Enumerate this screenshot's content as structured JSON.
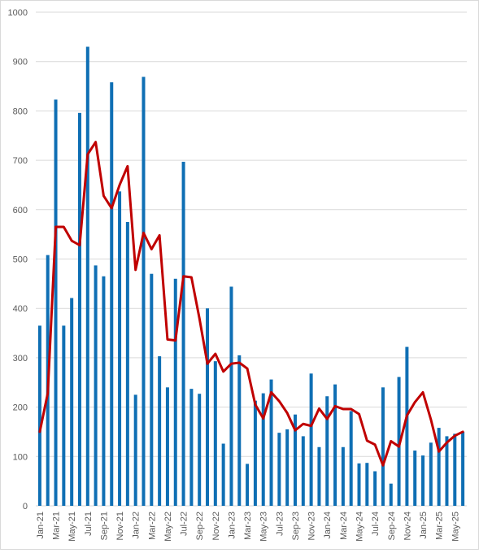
{
  "chart_data": {
    "type": "bar",
    "title": "",
    "xlabel": "",
    "ylabel": "",
    "ylim": [
      0,
      1000
    ],
    "yticks": [
      0,
      100,
      200,
      300,
      400,
      500,
      600,
      700,
      800,
      900,
      1000
    ],
    "grid": true,
    "legend": "none",
    "x_tick_labels_shown": [
      "Jan-21",
      "Mar-21",
      "May-21",
      "Jul-21",
      "Sep-21",
      "Nov-21",
      "Jan-22",
      "Mar-22",
      "May-22",
      "Jul-22",
      "Sep-22",
      "Nov-22",
      "Jan-23",
      "Mar-23",
      "May-23",
      "Jul-23",
      "Sep-23",
      "Nov-23",
      "Jan-24",
      "Mar-24",
      "May-24",
      "Jul-24",
      "Sep-24",
      "Nov-24",
      "Jan-25",
      "Mar-25",
      "May-25"
    ],
    "categories": [
      "Jan-21",
      "Feb-21",
      "Mar-21",
      "Apr-21",
      "May-21",
      "Jun-21",
      "Jul-21",
      "Aug-21",
      "Sep-21",
      "Oct-21",
      "Nov-21",
      "Dec-21",
      "Jan-22",
      "Feb-22",
      "Mar-22",
      "Apr-22",
      "May-22",
      "Jun-22",
      "Jul-22",
      "Aug-22",
      "Sep-22",
      "Oct-22",
      "Nov-22",
      "Dec-22",
      "Jan-23",
      "Feb-23",
      "Mar-23",
      "Apr-23",
      "May-23",
      "Jun-23",
      "Jul-23",
      "Aug-23",
      "Sep-23",
      "Oct-23",
      "Nov-23",
      "Dec-23",
      "Jan-24",
      "Feb-24",
      "Mar-24",
      "Apr-24",
      "May-24",
      "Jun-24",
      "Jul-24",
      "Aug-24",
      "Sep-24",
      "Oct-24",
      "Nov-24",
      "Dec-24",
      "Jan-25",
      "Feb-25",
      "Mar-25",
      "Apr-25",
      "May-25",
      "Jun-25"
    ],
    "series": [
      {
        "type": "bar",
        "color": "#0f6fb4",
        "values": [
          365,
          508,
          823,
          365,
          421,
          796,
          930,
          487,
          465,
          858,
          637,
          575,
          225,
          869,
          470,
          303,
          240,
          460,
          697,
          237,
          227,
          400,
          293,
          126,
          444,
          305,
          85,
          213,
          228,
          256,
          148,
          155,
          185,
          141,
          268,
          119,
          222,
          246,
          119,
          192,
          86,
          87,
          70,
          240,
          45,
          261,
          322,
          112,
          102,
          128,
          158,
          141,
          146,
          150
        ]
      },
      {
        "type": "line",
        "color": "#c00000",
        "values": [
          150,
          228,
          565,
          565,
          537,
          528,
          712,
          737,
          628,
          603,
          650,
          688,
          478,
          553,
          520,
          548,
          337,
          335,
          465,
          463,
          380,
          288,
          308,
          272,
          288,
          290,
          278,
          205,
          177,
          230,
          212,
          188,
          153,
          166,
          162,
          197,
          176,
          202,
          196,
          196,
          186,
          132,
          124,
          82,
          131,
          120,
          183,
          210,
          230,
          175,
          110,
          128,
          142,
          150
        ]
      }
    ]
  }
}
